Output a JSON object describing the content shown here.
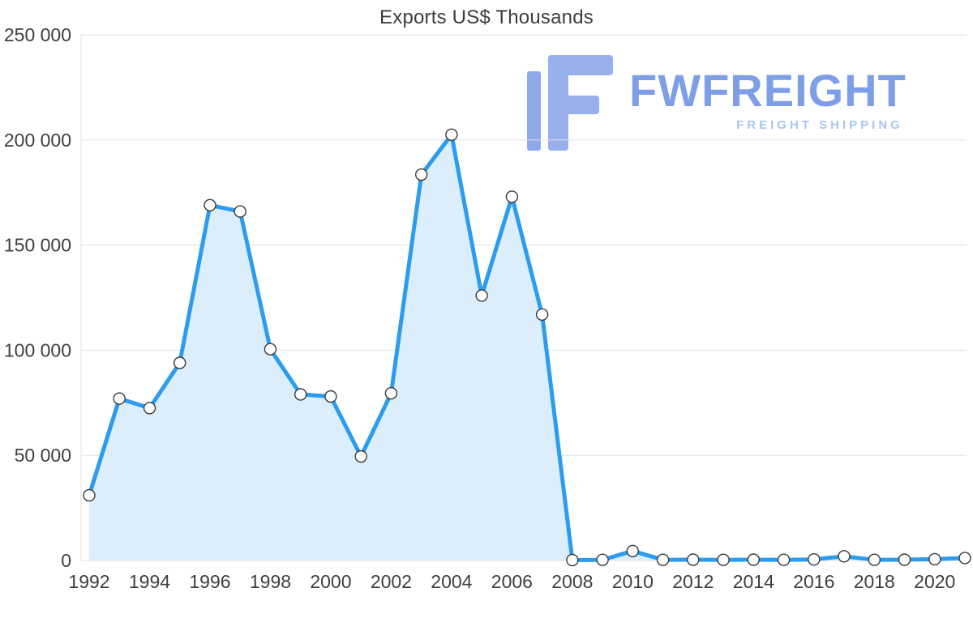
{
  "chart_data": {
    "type": "line",
    "title": "Exports US$ Thousands",
    "xlabel": "",
    "ylabel": "",
    "x": [
      1992,
      1993,
      1994,
      1995,
      1996,
      1997,
      1998,
      1999,
      2000,
      2001,
      2002,
      2003,
      2004,
      2005,
      2006,
      2007,
      2008,
      2009,
      2010,
      2011,
      2012,
      2013,
      2014,
      2015,
      2016,
      2017,
      2018,
      2019,
      2020,
      2021
    ],
    "values": [
      31000,
      77000,
      72500,
      94000,
      169000,
      166000,
      100500,
      79000,
      78000,
      49500,
      79500,
      183500,
      202500,
      126000,
      173000,
      117000,
      200,
      300,
      4500,
      300,
      400,
      300,
      400,
      300,
      500,
      2000,
      300,
      400,
      600,
      1200
    ],
    "x_tick_labels": [
      "1992",
      "1994",
      "1996",
      "1998",
      "2000",
      "2002",
      "2004",
      "2006",
      "2008",
      "2010",
      "2012",
      "2014",
      "2016",
      "2018",
      "2020"
    ],
    "y_tick_labels": [
      "0",
      "50 000",
      "100 000",
      "150 000",
      "200 000",
      "250 000"
    ],
    "y_tick_values": [
      0,
      50000,
      100000,
      150000,
      200000,
      250000
    ],
    "xlim": [
      1992,
      2021
    ],
    "ylim": [
      0,
      250000
    ],
    "grid": "horizontal",
    "legend": "none",
    "colors": {
      "line": "#2B9CF0",
      "area": "#DCEEFC",
      "marker_fill": "#FEFEFE",
      "marker_stroke": "#3A3A3A",
      "grid": "#E1E1E1",
      "axis_text": "#3F3F3F"
    }
  },
  "watermark": {
    "brand": "FWFREIGHT",
    "tagline": "FREIGHT SHIPPING"
  }
}
